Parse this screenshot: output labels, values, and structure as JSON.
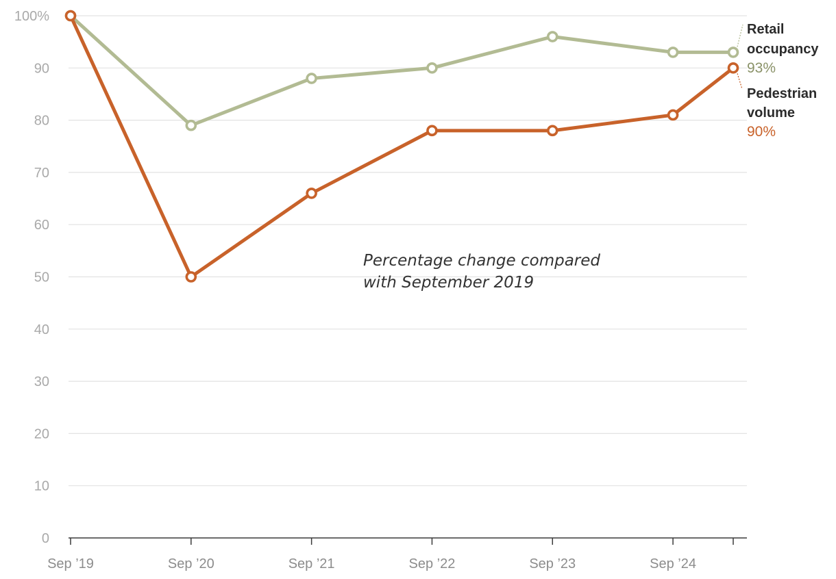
{
  "chart_data": {
    "type": "line",
    "annotation": [
      "Percentage change compared",
      "with September 2019"
    ],
    "x": [
      2019,
      2020,
      2021,
      2022,
      2023,
      2024,
      2024.5
    ],
    "xticks": [
      {
        "value": 2019,
        "label": "Sep ’19"
      },
      {
        "value": 2020,
        "label": "Sep ’20"
      },
      {
        "value": 2021,
        "label": "Sep ’21"
      },
      {
        "value": 2022,
        "label": "Sep ’22"
      },
      {
        "value": 2023,
        "label": "Sep ’23"
      },
      {
        "value": 2024,
        "label": "Sep ’24"
      },
      {
        "value": 2024.5,
        "label": ""
      }
    ],
    "xlim": [
      2019,
      2024.5
    ],
    "ylim": [
      0,
      100
    ],
    "yticks": [
      {
        "value": 0,
        "label": "0"
      },
      {
        "value": 10,
        "label": "10"
      },
      {
        "value": 20,
        "label": "20"
      },
      {
        "value": 30,
        "label": "30"
      },
      {
        "value": 40,
        "label": "40"
      },
      {
        "value": 50,
        "label": "50"
      },
      {
        "value": 60,
        "label": "60"
      },
      {
        "value": 70,
        "label": "70"
      },
      {
        "value": 80,
        "label": "80"
      },
      {
        "value": 90,
        "label": "90"
      },
      {
        "value": 100,
        "label": "100%"
      }
    ],
    "grid": true,
    "series": [
      {
        "key": "retail",
        "label_lines": [
          "Retail",
          "occupancy"
        ],
        "value_label": "93%",
        "color": "#b2bb93",
        "label_color": "#8a9268",
        "values": [
          100,
          79,
          88,
          90,
          96,
          93,
          93
        ]
      },
      {
        "key": "pedestrian",
        "label_lines": [
          "Pedestrian",
          "volume"
        ],
        "value_label": "90%",
        "color": "#c8622a",
        "label_color": "#c8622a",
        "values": [
          100,
          50,
          66,
          78,
          78,
          81,
          90
        ]
      }
    ]
  }
}
